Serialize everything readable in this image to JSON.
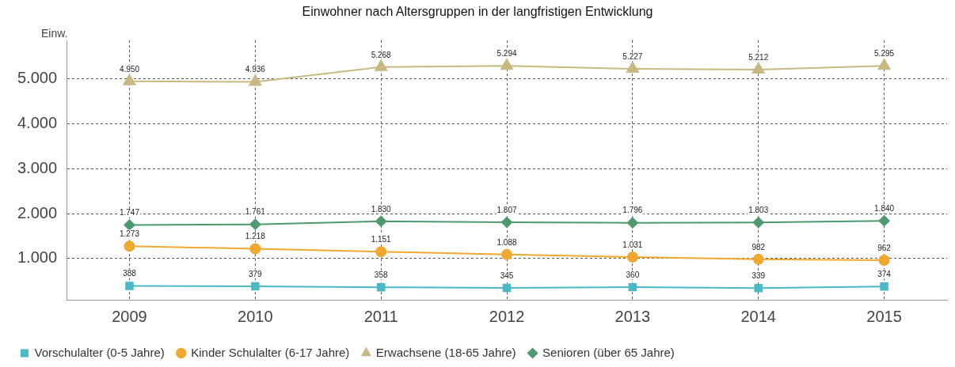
{
  "chart_data": {
    "type": "line",
    "title": "Einwohner nach Altersgruppen in der langfristigen Entwicklung",
    "ylabel": "Einw.",
    "categories": [
      "2009",
      "2010",
      "2011",
      "2012",
      "2013",
      "2014",
      "2015"
    ],
    "series": [
      {
        "name": "Vorschulalter (0-5 Jahre)",
        "color": "#4bb8c8",
        "marker": "square",
        "values": [
          388,
          379,
          358,
          345,
          360,
          339,
          374
        ],
        "value_labels": [
          "388",
          "379",
          "358",
          "345",
          "360",
          "339",
          "374"
        ]
      },
      {
        "name": "Kinder Schulalter (6-17 Jahre)",
        "color": "#f0a830",
        "marker": "circle",
        "values": [
          1273,
          1218,
          1151,
          1088,
          1031,
          982,
          962
        ],
        "value_labels": [
          "1.273",
          "1.218",
          "1.151",
          "1.088",
          "1.031",
          "982",
          "962"
        ]
      },
      {
        "name": "Erwachsene (18-65 Jahre)",
        "color": "#c8b882",
        "marker": "triangle",
        "values": [
          4950,
          4936,
          5268,
          5294,
          5227,
          5212,
          5295
        ],
        "value_labels": [
          "4.950",
          "4.936",
          "5.268",
          "5.294",
          "5.227",
          "5.212",
          "5.295"
        ]
      },
      {
        "name": "Senioren (über 65 Jahre)",
        "color": "#4e9a6e",
        "marker": "diamond",
        "values": [
          1747,
          1761,
          1830,
          1807,
          1796,
          1803,
          1840
        ],
        "value_labels": [
          "1.747",
          "1.761",
          "1.830",
          "1.807",
          "1.796",
          "1.803",
          "1.840"
        ]
      }
    ],
    "ylim": [
      80,
      5860
    ],
    "yticks": [
      {
        "value": 1000,
        "label": "1.000"
      },
      {
        "value": 2000,
        "label": "2.000"
      },
      {
        "value": 3000,
        "label": "3.000"
      },
      {
        "value": 4000,
        "label": "4.000"
      },
      {
        "value": 5000,
        "label": "5.000"
      }
    ],
    "grid": true,
    "legend": "bottom"
  }
}
